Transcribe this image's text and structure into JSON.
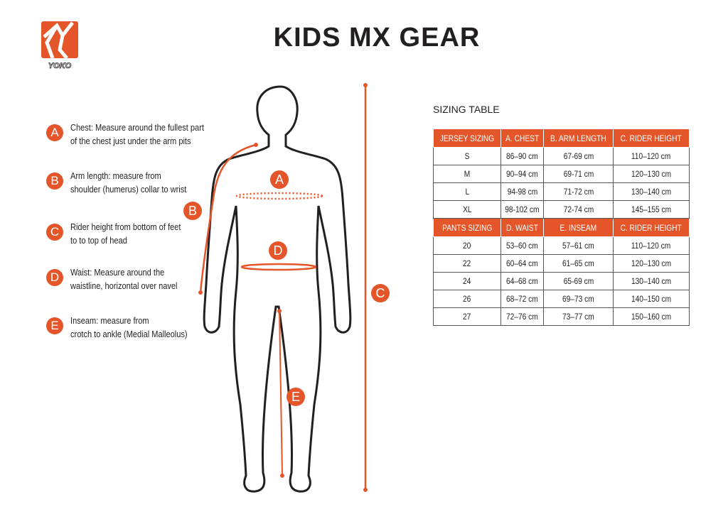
{
  "brand": {
    "logo_text": "YOKO",
    "color": "#e4562a"
  },
  "title": "KIDS MX GEAR",
  "legend": [
    {
      "letter": "A",
      "lines": [
        "Chest: Measure around  the fullest part",
        "of the chest just under the arm pits"
      ]
    },
    {
      "letter": "B",
      "lines": [
        "Arm length: measure from",
        "shoulder (humerus) collar to wrist"
      ]
    },
    {
      "letter": "C",
      "lines": [
        "Rider height from bottom of feet",
        "to to top of head"
      ]
    },
    {
      "letter": "D",
      "lines": [
        "Waist: Measure around the",
        "waistline, horizontal over navel"
      ]
    },
    {
      "letter": "E",
      "lines": [
        "Inseam: measure from",
        "crotch to ankle (Medial Malleolus)"
      ]
    }
  ],
  "markers": {
    "a": "A",
    "b": "B",
    "c": "C",
    "d": "D",
    "e": "E"
  },
  "table": {
    "caption": "SIZING TABLE",
    "jersey_header": [
      "JERSEY SIZING",
      "A. CHEST",
      "B. ARM LENGTH",
      "C. RIDER HEIGHT"
    ],
    "jersey_rows": [
      [
        "S",
        "86–90 cm",
        "67-69 cm",
        "110–120 cm"
      ],
      [
        "M",
        "90–94 cm",
        "69-71 cm",
        "120–130 cm"
      ],
      [
        "L",
        "94-98 cm",
        "71-72 cm",
        "130–140 cm"
      ],
      [
        "XL",
        "98-102 cm",
        "72-74 cm",
        "145–155 cm"
      ]
    ],
    "pants_header": [
      "PANTS SIZING",
      "D. WAIST",
      "E. INSEAM",
      "C. RIDER HEIGHT"
    ],
    "pants_rows": [
      [
        "20",
        "53–60 cm",
        "57–61 cm",
        "110–120 cm"
      ],
      [
        "22",
        "60–64 cm",
        "61–65 cm",
        "120–130 cm"
      ],
      [
        "24",
        "64–68 cm",
        "65-69 cm",
        "130–140 cm"
      ],
      [
        "26",
        "68–72 cm",
        "69–73 cm",
        "140–150 cm"
      ],
      [
        "27",
        "72–76 cm",
        "73–77 cm",
        "150–160 cm"
      ]
    ]
  }
}
